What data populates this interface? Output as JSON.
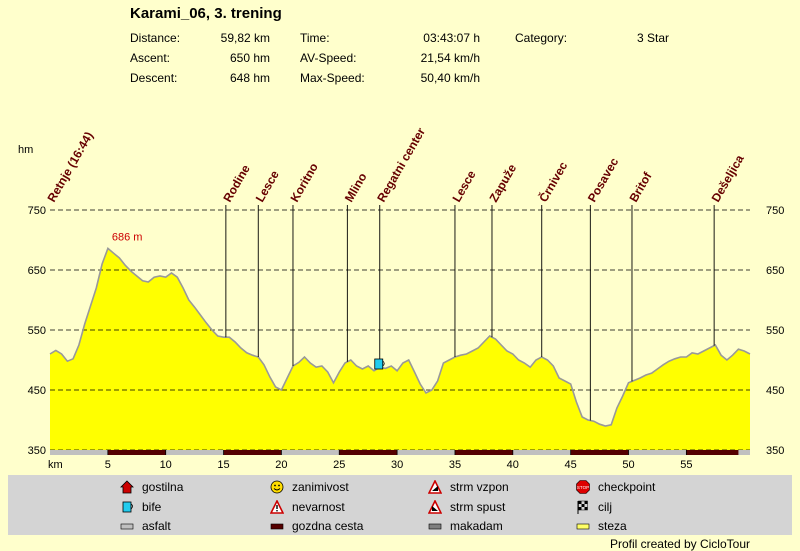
{
  "header": {
    "title": "Karami_06, 3. trening",
    "stats": [
      {
        "label": "Distance:",
        "value": "59,82 km"
      },
      {
        "label": "Ascent:",
        "value": "650 hm"
      },
      {
        "label": "Descent:",
        "value": "648 hm"
      },
      {
        "label": "Time:",
        "value": "03:43:07 h"
      },
      {
        "label": "AV-Speed:",
        "value": "21,54 km/h"
      },
      {
        "label": "Max-Speed:",
        "value": "50,40 km/h"
      },
      {
        "label": "Category:",
        "value": "3 Star"
      }
    ]
  },
  "chart_data": {
    "type": "area",
    "xlabel": "km",
    "ylabel": "hm",
    "xlim": [
      0,
      60.5
    ],
    "ylim": [
      350,
      750
    ],
    "x_ticks": [
      "5",
      "10",
      "15",
      "20",
      "25",
      "30",
      "35",
      "40",
      "45",
      "50",
      "55"
    ],
    "x_tick_values": [
      5,
      10,
      15,
      20,
      25,
      30,
      35,
      40,
      45,
      50,
      55
    ],
    "y_ticks": [
      "750",
      "650",
      "550",
      "450",
      "350"
    ],
    "y_tick_values": [
      750,
      650,
      550,
      450,
      350
    ],
    "grid": true,
    "fill_color": "#ffff00",
    "max_label": "686 m",
    "max_point": [
      5,
      686
    ],
    "profile": [
      [
        0,
        510
      ],
      [
        0.5,
        516
      ],
      [
        1,
        510
      ],
      [
        1.5,
        498
      ],
      [
        2,
        502
      ],
      [
        2.5,
        525
      ],
      [
        3,
        560
      ],
      [
        3.5,
        590
      ],
      [
        4,
        620
      ],
      [
        4.5,
        660
      ],
      [
        5,
        686
      ],
      [
        5.5,
        678
      ],
      [
        6,
        670
      ],
      [
        6.5,
        658
      ],
      [
        7,
        648
      ],
      [
        7.5,
        640
      ],
      [
        8,
        632
      ],
      [
        8.5,
        630
      ],
      [
        9,
        638
      ],
      [
        9.5,
        640
      ],
      [
        10,
        638
      ],
      [
        10.5,
        645
      ],
      [
        11,
        638
      ],
      [
        11.5,
        620
      ],
      [
        12,
        600
      ],
      [
        12.5,
        588
      ],
      [
        13,
        575
      ],
      [
        13.5,
        562
      ],
      [
        14,
        550
      ],
      [
        14.5,
        540
      ],
      [
        15,
        538
      ],
      [
        15.5,
        538
      ],
      [
        16,
        530
      ],
      [
        16.5,
        520
      ],
      [
        17,
        512
      ],
      [
        17.5,
        508
      ],
      [
        18,
        505
      ],
      [
        18.5,
        492
      ],
      [
        19,
        472
      ],
      [
        19.5,
        455
      ],
      [
        20,
        450
      ],
      [
        20.5,
        470
      ],
      [
        21,
        490
      ],
      [
        21.5,
        496
      ],
      [
        22,
        505
      ],
      [
        22.5,
        495
      ],
      [
        23,
        488
      ],
      [
        23.5,
        490
      ],
      [
        24,
        480
      ],
      [
        24.5,
        462
      ],
      [
        25,
        480
      ],
      [
        25.5,
        495
      ],
      [
        26,
        500
      ],
      [
        26.5,
        490
      ],
      [
        27,
        485
      ],
      [
        27.5,
        490
      ],
      [
        28,
        482
      ],
      [
        28.5,
        488
      ],
      [
        29,
        486
      ],
      [
        29.5,
        490
      ],
      [
        30,
        482
      ],
      [
        30.5,
        495
      ],
      [
        31,
        500
      ],
      [
        31.5,
        480
      ],
      [
        32,
        460
      ],
      [
        32.5,
        445
      ],
      [
        33,
        450
      ],
      [
        33.5,
        465
      ],
      [
        34,
        495
      ],
      [
        34.5,
        500
      ],
      [
        35,
        505
      ],
      [
        35.5,
        508
      ],
      [
        36,
        510
      ],
      [
        36.5,
        515
      ],
      [
        37,
        520
      ],
      [
        37.5,
        530
      ],
      [
        38,
        540
      ],
      [
        38.5,
        535
      ],
      [
        39,
        525
      ],
      [
        39.5,
        515
      ],
      [
        40,
        510
      ],
      [
        40.5,
        500
      ],
      [
        41,
        495
      ],
      [
        41.5,
        488
      ],
      [
        42,
        500
      ],
      [
        42.5,
        505
      ],
      [
        43,
        500
      ],
      [
        43.5,
        490
      ],
      [
        44,
        470
      ],
      [
        44.5,
        465
      ],
      [
        45,
        460
      ],
      [
        45.5,
        430
      ],
      [
        46,
        405
      ],
      [
        46.5,
        400
      ],
      [
        47,
        398
      ],
      [
        47.5,
        393
      ],
      [
        48,
        390
      ],
      [
        48.5,
        392
      ],
      [
        49,
        420
      ],
      [
        49.5,
        440
      ],
      [
        50,
        462
      ],
      [
        50.5,
        466
      ],
      [
        51,
        470
      ],
      [
        51.5,
        475
      ],
      [
        52,
        478
      ],
      [
        52.5,
        485
      ],
      [
        53,
        492
      ],
      [
        53.5,
        498
      ],
      [
        54,
        502
      ],
      [
        54.5,
        505
      ],
      [
        55,
        505
      ],
      [
        55.5,
        512
      ],
      [
        56,
        510
      ],
      [
        56.5,
        515
      ],
      [
        57,
        520
      ],
      [
        57.5,
        525
      ],
      [
        58,
        508
      ],
      [
        58.5,
        500
      ],
      [
        59,
        508
      ],
      [
        59.5,
        518
      ],
      [
        60,
        515
      ],
      [
        60.5,
        510
      ]
    ],
    "waypoints": [
      {
        "name": "Retnje (16:44)",
        "km": 0,
        "line": false
      },
      {
        "name": "Rodine",
        "km": 15.2
      },
      {
        "name": "Lesce",
        "km": 18
      },
      {
        "name": "Koritno",
        "km": 21
      },
      {
        "name": "Mlino",
        "km": 25.7
      },
      {
        "name": "Regatni center",
        "km": 28.5
      },
      {
        "name": "Lesce",
        "km": 35
      },
      {
        "name": "Zapuže",
        "km": 38.2
      },
      {
        "name": "Črnivec",
        "km": 42.5
      },
      {
        "name": "Posavec",
        "km": 46.7
      },
      {
        "name": "Britof",
        "km": 50.3
      },
      {
        "name": "Dešeljica",
        "km": 57.4
      }
    ],
    "surface_bands": [
      {
        "type": "gozdna cesta",
        "from": 5,
        "to": 10
      },
      {
        "type": "gozdna cesta",
        "from": 15,
        "to": 20
      },
      {
        "type": "gozdna cesta",
        "from": 25,
        "to": 30
      },
      {
        "type": "gozdna cesta",
        "from": 35,
        "to": 40
      },
      {
        "type": "gozdna cesta",
        "from": 45,
        "to": 50
      },
      {
        "type": "gozdna cesta",
        "from": 55,
        "to": 59.5
      }
    ],
    "bife_km": 28.5
  },
  "legend": [
    {
      "label": "gostilna",
      "icon": "house-icon"
    },
    {
      "label": "zanimivost",
      "icon": "smiley-icon"
    },
    {
      "label": "strm vzpon",
      "icon": "steep-climb-icon"
    },
    {
      "label": "checkpoint",
      "icon": "stop-icon"
    },
    {
      "label": "bife",
      "icon": "cup-icon"
    },
    {
      "label": "nevarnost",
      "icon": "warning-icon"
    },
    {
      "label": "strm spust",
      "icon": "steep-descent-icon"
    },
    {
      "label": "cilj",
      "icon": "finish-flag-icon"
    },
    {
      "label": "asfalt",
      "icon": "asphalt-swatch"
    },
    {
      "label": "gozdna cesta",
      "icon": "forest-road-swatch"
    },
    {
      "label": "makadam",
      "icon": "gravel-swatch"
    },
    {
      "label": "steza",
      "icon": "trail-swatch"
    }
  ],
  "footer": "Profil created by CicloTour"
}
